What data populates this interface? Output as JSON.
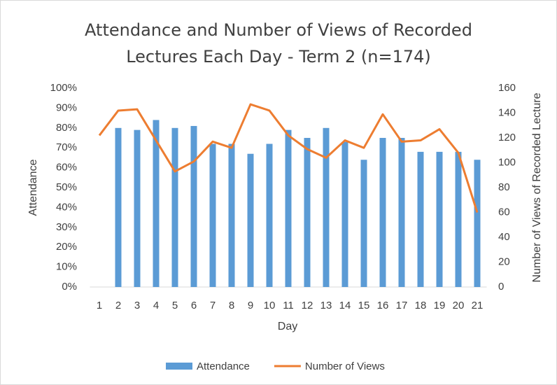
{
  "chart_data": {
    "type": "combo",
    "title": "Attendance and Number of Views of Recorded Lectures Each Day - Term 2 (n=174)",
    "x_label": "Day",
    "y_label": "Attendance",
    "y2_label": "Number of Views of Recorded Lecture",
    "categories": [
      "1",
      "2",
      "3",
      "4",
      "5",
      "6",
      "7",
      "8",
      "9",
      "10",
      "11",
      "12",
      "13",
      "14",
      "15",
      "16",
      "17",
      "18",
      "19",
      "20",
      "21"
    ],
    "series": [
      {
        "name": "Attendance",
        "type": "bar",
        "color": "#5b9bd5",
        "axis": "y",
        "values": [
          null,
          80,
          79,
          84,
          80,
          81,
          72,
          72,
          67,
          72,
          79,
          75,
          80,
          73,
          64,
          75,
          75,
          68,
          68,
          68,
          64
        ]
      },
      {
        "name": "Number of Views",
        "type": "line",
        "color": "#ed7d31",
        "axis": "y2",
        "values": [
          122,
          142,
          143,
          118,
          93,
          101,
          117,
          112,
          147,
          142,
          122,
          111,
          104,
          118,
          112,
          139,
          117,
          118,
          127,
          108,
          60
        ]
      }
    ],
    "ylim": [
      0,
      100
    ],
    "yticks": [
      {
        "value": 0,
        "label": "0%"
      },
      {
        "value": 10,
        "label": "10%"
      },
      {
        "value": 20,
        "label": "20%"
      },
      {
        "value": 30,
        "label": "30%"
      },
      {
        "value": 40,
        "label": "40%"
      },
      {
        "value": 50,
        "label": "50%"
      },
      {
        "value": 60,
        "label": "60%"
      },
      {
        "value": 70,
        "label": "70%"
      },
      {
        "value": 80,
        "label": "80%"
      },
      {
        "value": 90,
        "label": "90%"
      },
      {
        "value": 100,
        "label": "100%"
      }
    ],
    "y2lim": [
      0,
      160
    ],
    "y2ticks": [
      0,
      20,
      40,
      60,
      80,
      100,
      120,
      140,
      160
    ],
    "grid": false,
    "legend": "bottom"
  }
}
